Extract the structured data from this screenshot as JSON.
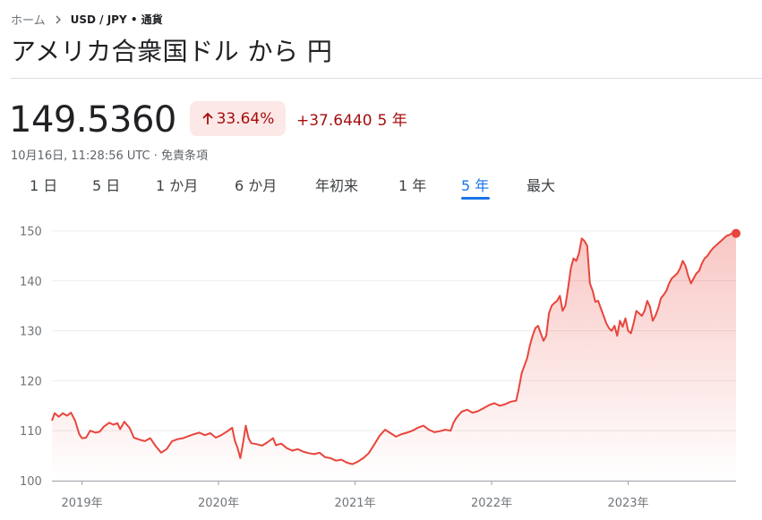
{
  "breadcrumb": {
    "home": "ホーム",
    "current": "USD / JPY • 通貨"
  },
  "title": "アメリカ合衆国ドル から 円",
  "quote": {
    "price": "149.5360",
    "percent_change": "33.64%",
    "abs_change": "+37.6440",
    "period": "5 年",
    "timestamp": "10月16日, 11:28:56 UTC · 免責条項",
    "direction": "up"
  },
  "tabs": [
    {
      "label": "1 日",
      "active": false
    },
    {
      "label": "5 日",
      "active": false
    },
    {
      "label": "1 か月",
      "active": false
    },
    {
      "label": "6 か月",
      "active": false
    },
    {
      "label": "年初来",
      "active": false
    },
    {
      "label": "1 年",
      "active": false
    },
    {
      "label": "5 年",
      "active": true
    },
    {
      "label": "最大",
      "active": false
    }
  ],
  "colors": {
    "line": "#e8453c",
    "positive": "#a50e0e",
    "badge_bg": "#fce8e6",
    "active_tab": "#1a73e8",
    "gridline": "#ebebeb"
  },
  "chart_data": {
    "type": "area",
    "title": "",
    "xlabel": "",
    "ylabel": "",
    "x_ticks": [
      "2019年",
      "2020年",
      "2021年",
      "2022年",
      "2023年"
    ],
    "y_ticks": [
      100,
      110,
      120,
      130,
      140,
      150
    ],
    "ylim": [
      100,
      150
    ],
    "xlim": [
      2018.78,
      2023.79
    ],
    "grid": true,
    "series": [
      {
        "values": [
          [
            2018.78,
            112.0
          ],
          [
            2018.8,
            113.5
          ],
          [
            2018.83,
            112.8
          ],
          [
            2018.86,
            113.5
          ],
          [
            2018.89,
            113.0
          ],
          [
            2018.92,
            113.6
          ],
          [
            2018.95,
            112.0
          ],
          [
            2018.98,
            109.3
          ],
          [
            2019.0,
            108.5
          ],
          [
            2019.03,
            108.6
          ],
          [
            2019.06,
            110.0
          ],
          [
            2019.1,
            109.6
          ],
          [
            2019.13,
            109.8
          ],
          [
            2019.16,
            110.8
          ],
          [
            2019.2,
            111.6
          ],
          [
            2019.23,
            111.2
          ],
          [
            2019.26,
            111.5
          ],
          [
            2019.28,
            110.3
          ],
          [
            2019.31,
            111.8
          ],
          [
            2019.35,
            110.5
          ],
          [
            2019.38,
            108.6
          ],
          [
            2019.42,
            108.2
          ],
          [
            2019.46,
            107.9
          ],
          [
            2019.5,
            108.5
          ],
          [
            2019.54,
            106.9
          ],
          [
            2019.58,
            105.6
          ],
          [
            2019.62,
            106.3
          ],
          [
            2019.66,
            107.9
          ],
          [
            2019.7,
            108.3
          ],
          [
            2019.74,
            108.5
          ],
          [
            2019.78,
            108.9
          ],
          [
            2019.82,
            109.3
          ],
          [
            2019.86,
            109.6
          ],
          [
            2019.9,
            109.1
          ],
          [
            2019.94,
            109.5
          ],
          [
            2019.98,
            108.6
          ],
          [
            2020.02,
            109.1
          ],
          [
            2020.06,
            109.8
          ],
          [
            2020.1,
            110.6
          ],
          [
            2020.12,
            108.0
          ],
          [
            2020.14,
            106.5
          ],
          [
            2020.16,
            104.5
          ],
          [
            2020.18,
            107.6
          ],
          [
            2020.2,
            111.0
          ],
          [
            2020.22,
            108.5
          ],
          [
            2020.24,
            107.5
          ],
          [
            2020.28,
            107.3
          ],
          [
            2020.32,
            107.0
          ],
          [
            2020.36,
            107.7
          ],
          [
            2020.4,
            108.5
          ],
          [
            2020.42,
            107.1
          ],
          [
            2020.46,
            107.4
          ],
          [
            2020.5,
            106.5
          ],
          [
            2020.54,
            106.0
          ],
          [
            2020.58,
            106.3
          ],
          [
            2020.62,
            105.8
          ],
          [
            2020.66,
            105.5
          ],
          [
            2020.7,
            105.3
          ],
          [
            2020.74,
            105.6
          ],
          [
            2020.78,
            104.7
          ],
          [
            2020.82,
            104.5
          ],
          [
            2020.86,
            104.0
          ],
          [
            2020.9,
            104.2
          ],
          [
            2020.94,
            103.6
          ],
          [
            2020.98,
            103.3
          ],
          [
            2021.02,
            103.8
          ],
          [
            2021.06,
            104.5
          ],
          [
            2021.1,
            105.5
          ],
          [
            2021.14,
            107.2
          ],
          [
            2021.18,
            109.0
          ],
          [
            2021.22,
            110.2
          ],
          [
            2021.26,
            109.5
          ],
          [
            2021.3,
            108.8
          ],
          [
            2021.34,
            109.3
          ],
          [
            2021.38,
            109.6
          ],
          [
            2021.42,
            110.0
          ],
          [
            2021.46,
            110.6
          ],
          [
            2021.5,
            111.0
          ],
          [
            2021.54,
            110.2
          ],
          [
            2021.58,
            109.7
          ],
          [
            2021.62,
            109.9
          ],
          [
            2021.66,
            110.2
          ],
          [
            2021.7,
            110.0
          ],
          [
            2021.72,
            111.5
          ],
          [
            2021.74,
            112.5
          ],
          [
            2021.78,
            113.8
          ],
          [
            2021.82,
            114.2
          ],
          [
            2021.86,
            113.6
          ],
          [
            2021.9,
            113.9
          ],
          [
            2021.94,
            114.5
          ],
          [
            2021.98,
            115.1
          ],
          [
            2022.02,
            115.5
          ],
          [
            2022.06,
            115.0
          ],
          [
            2022.1,
            115.3
          ],
          [
            2022.14,
            115.8
          ],
          [
            2022.18,
            116.0
          ],
          [
            2022.2,
            118.5
          ],
          [
            2022.22,
            121.5
          ],
          [
            2022.24,
            123.0
          ],
          [
            2022.26,
            124.5
          ],
          [
            2022.28,
            127.0
          ],
          [
            2022.3,
            129.0
          ],
          [
            2022.32,
            130.5
          ],
          [
            2022.34,
            131.0
          ],
          [
            2022.36,
            129.5
          ],
          [
            2022.38,
            128.0
          ],
          [
            2022.4,
            129.0
          ],
          [
            2022.42,
            133.5
          ],
          [
            2022.44,
            135.0
          ],
          [
            2022.46,
            135.6
          ],
          [
            2022.48,
            136.0
          ],
          [
            2022.5,
            137.0
          ],
          [
            2022.52,
            134.0
          ],
          [
            2022.54,
            135.0
          ],
          [
            2022.56,
            138.5
          ],
          [
            2022.58,
            142.5
          ],
          [
            2022.6,
            144.5
          ],
          [
            2022.62,
            144.0
          ],
          [
            2022.64,
            145.5
          ],
          [
            2022.66,
            148.5
          ],
          [
            2022.68,
            148.0
          ],
          [
            2022.7,
            147.0
          ],
          [
            2022.72,
            139.5
          ],
          [
            2022.74,
            138.0
          ],
          [
            2022.76,
            135.8
          ],
          [
            2022.78,
            136.0
          ],
          [
            2022.8,
            134.5
          ],
          [
            2022.82,
            133.0
          ],
          [
            2022.84,
            131.5
          ],
          [
            2022.86,
            130.5
          ],
          [
            2022.88,
            130.0
          ],
          [
            2022.9,
            131.0
          ],
          [
            2022.92,
            129.0
          ],
          [
            2022.94,
            132.0
          ],
          [
            2022.96,
            130.8
          ],
          [
            2022.98,
            132.5
          ],
          [
            2023.0,
            130.0
          ],
          [
            2023.02,
            129.5
          ],
          [
            2023.04,
            131.5
          ],
          [
            2023.06,
            134.0
          ],
          [
            2023.08,
            133.5
          ],
          [
            2023.1,
            133.0
          ],
          [
            2023.12,
            134.0
          ],
          [
            2023.14,
            136.0
          ],
          [
            2023.16,
            134.8
          ],
          [
            2023.18,
            132.0
          ],
          [
            2023.2,
            133.0
          ],
          [
            2023.22,
            134.5
          ],
          [
            2023.24,
            136.5
          ],
          [
            2023.26,
            137.2
          ],
          [
            2023.28,
            138.0
          ],
          [
            2023.3,
            139.5
          ],
          [
            2023.32,
            140.5
          ],
          [
            2023.34,
            141.0
          ],
          [
            2023.36,
            141.5
          ],
          [
            2023.38,
            142.5
          ],
          [
            2023.4,
            144.0
          ],
          [
            2023.42,
            143.0
          ],
          [
            2023.44,
            141.0
          ],
          [
            2023.46,
            139.5
          ],
          [
            2023.48,
            140.5
          ],
          [
            2023.5,
            141.5
          ],
          [
            2023.52,
            142.0
          ],
          [
            2023.54,
            143.5
          ],
          [
            2023.56,
            144.5
          ],
          [
            2023.58,
            145.0
          ],
          [
            2023.6,
            145.8
          ],
          [
            2023.62,
            146.5
          ],
          [
            2023.64,
            147.0
          ],
          [
            2023.66,
            147.5
          ],
          [
            2023.68,
            148.0
          ],
          [
            2023.7,
            148.5
          ],
          [
            2023.72,
            149.0
          ],
          [
            2023.74,
            149.2
          ],
          [
            2023.76,
            149.5
          ],
          [
            2023.79,
            149.5
          ]
        ]
      }
    ]
  }
}
